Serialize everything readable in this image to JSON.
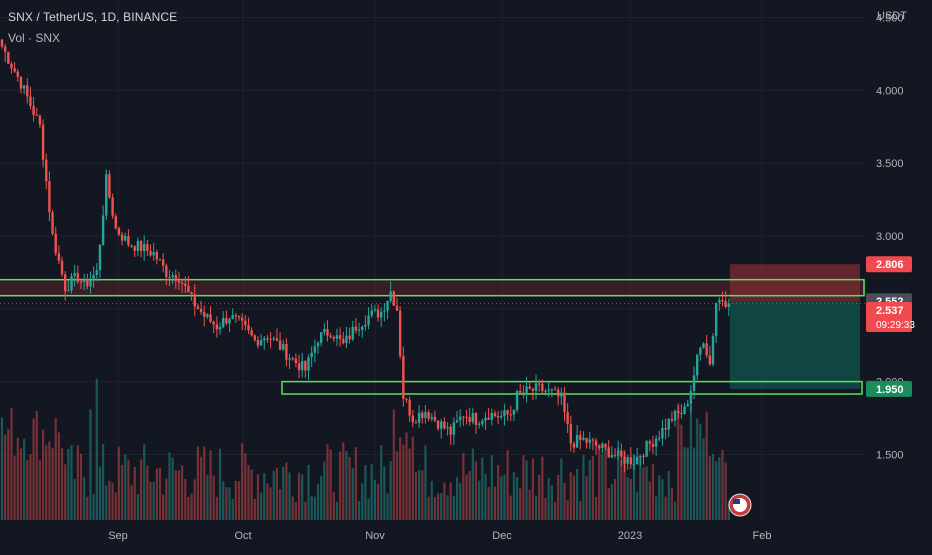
{
  "header": {
    "symbol_line": "SNX / TetherUS, 1D, BINANCE",
    "volume_label": "Vol · SNX",
    "currency": "USDT"
  },
  "colors": {
    "background": "#131722",
    "up": "#26a69a",
    "down": "#ef5350",
    "zone_outline": "#5ee05e",
    "stop_zone": "#c0393b",
    "target_zone": "#0f6b5c",
    "grid": "#1e222d",
    "axis_text": "#b2b5be"
  },
  "chart_data": {
    "type": "candlestick",
    "y_axis": {
      "side": "right",
      "scale": "linear",
      "range": [
        1.05,
        4.62
      ],
      "tick_labels": [
        "4.500",
        "4.000",
        "3.500",
        "3.000",
        "2.000",
        "1.500"
      ]
    },
    "x_axis": {
      "tick_labels": [
        "Sep",
        "Oct",
        "Nov",
        "Dec",
        "2023",
        "Feb"
      ]
    },
    "grid": true,
    "ohlc_anchor_closes": [
      [
        0,
        4.3
      ],
      [
        6,
        4.05
      ],
      [
        12,
        3.75
      ],
      [
        16,
        3.0
      ],
      [
        20,
        2.65
      ],
      [
        24,
        2.72
      ],
      [
        26,
        2.66
      ],
      [
        30,
        2.75
      ],
      [
        33,
        3.38
      ],
      [
        36,
        3.05
      ],
      [
        40,
        2.95
      ],
      [
        44,
        2.92
      ],
      [
        48,
        2.88
      ],
      [
        52,
        2.75
      ],
      [
        56,
        2.72
      ],
      [
        60,
        2.56
      ],
      [
        64,
        2.45
      ],
      [
        68,
        2.38
      ],
      [
        72,
        2.45
      ],
      [
        76,
        2.38
      ],
      [
        80,
        2.28
      ],
      [
        84,
        2.32
      ],
      [
        88,
        2.24
      ],
      [
        92,
        2.15
      ],
      [
        96,
        2.08
      ],
      [
        100,
        2.3
      ],
      [
        104,
        2.35
      ],
      [
        108,
        2.25
      ],
      [
        112,
        2.38
      ],
      [
        116,
        2.45
      ],
      [
        120,
        2.48
      ],
      [
        123,
        2.62
      ],
      [
        125,
        2.5
      ],
      [
        127,
        1.9
      ],
      [
        130,
        1.75
      ],
      [
        134,
        1.8
      ],
      [
        138,
        1.72
      ],
      [
        142,
        1.65
      ],
      [
        146,
        1.78
      ],
      [
        150,
        1.74
      ],
      [
        154,
        1.78
      ],
      [
        158,
        1.76
      ],
      [
        161,
        1.78
      ],
      [
        163,
        1.9
      ],
      [
        166,
        1.93
      ],
      [
        170,
        1.95
      ],
      [
        174,
        1.92
      ],
      [
        177,
        1.88
      ],
      [
        180,
        1.58
      ],
      [
        184,
        1.6
      ],
      [
        188,
        1.56
      ],
      [
        192,
        1.52
      ],
      [
        196,
        1.47
      ],
      [
        200,
        1.46
      ],
      [
        204,
        1.55
      ],
      [
        208,
        1.64
      ],
      [
        212,
        1.75
      ],
      [
        216,
        1.8
      ],
      [
        218,
        1.95
      ],
      [
        220,
        2.15
      ],
      [
        222,
        2.3
      ],
      [
        224,
        2.12
      ],
      [
        226,
        2.55
      ],
      [
        228,
        2.57
      ],
      [
        230,
        2.54
      ]
    ],
    "candle_count": 231,
    "last_price": "2.537",
    "countdown": "09:29:33",
    "zones": [
      {
        "name": "resistance-zone",
        "top": 2.7,
        "bottom": 2.59
      },
      {
        "name": "support-zone",
        "top": 2.0,
        "bottom": 1.915
      }
    ],
    "position": {
      "stop_label": "2.806",
      "entry_label": "2.552",
      "target_label": "1.950",
      "stop": 2.806,
      "entry": 2.552,
      "target": 1.95
    }
  }
}
